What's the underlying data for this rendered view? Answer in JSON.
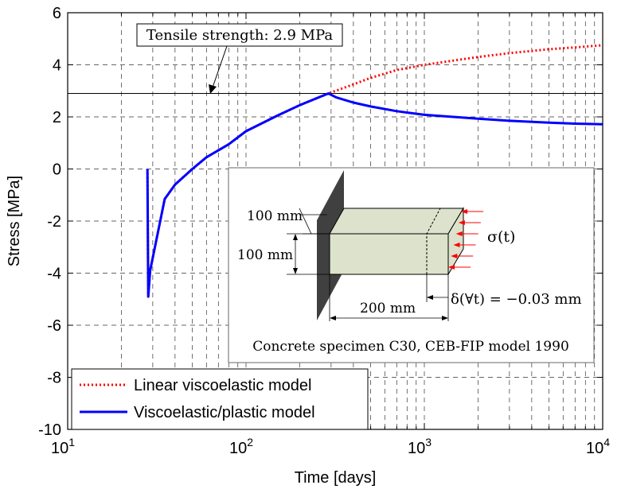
{
  "chart_data": {
    "type": "line",
    "xlabel": "Time [days]",
    "ylabel": "Stress [MPa]",
    "xscale": "log",
    "xlim": [
      10,
      10000
    ],
    "ylim": [
      -10,
      6
    ],
    "x_ticks": [
      {
        "base": "10",
        "exp": "1"
      },
      {
        "base": "10",
        "exp": "2"
      },
      {
        "base": "10",
        "exp": "3"
      },
      {
        "base": "10",
        "exp": "4"
      }
    ],
    "y_ticks": [
      "6",
      "4",
      "2",
      "0",
      "-2",
      "-4",
      "-6",
      "-8",
      "-10"
    ],
    "grid": true,
    "legend_position": "bottom-left",
    "reference_line": {
      "y": 2.9,
      "label": "Tensile strength: 2.9 MPa"
    },
    "series": [
      {
        "name": "Linear viscoelastic model",
        "color": "#ff0000",
        "style": "dotted",
        "x": [
          28,
          28.3,
          29,
          35,
          40,
          50,
          60,
          80,
          100,
          150,
          200,
          250,
          290,
          400,
          500,
          700,
          1000,
          2000,
          3000,
          5000,
          7000,
          10000
        ],
        "y": [
          0,
          -4.9,
          -3.9,
          -1.15,
          -0.6,
          0.0,
          0.45,
          0.95,
          1.45,
          2.05,
          2.45,
          2.72,
          2.9,
          3.25,
          3.5,
          3.8,
          4.0,
          4.3,
          4.45,
          4.6,
          4.67,
          4.75
        ]
      },
      {
        "name": "Viscoelastic/plastic model",
        "color": "#0000ff",
        "style": "solid",
        "x": [
          28,
          28.3,
          29,
          35,
          40,
          50,
          60,
          80,
          100,
          150,
          200,
          250,
          290,
          320,
          400,
          500,
          700,
          1000,
          2000,
          3000,
          5000,
          7000,
          10000
        ],
        "y": [
          0,
          -4.9,
          -3.9,
          -1.15,
          -0.6,
          0.0,
          0.45,
          0.95,
          1.45,
          2.05,
          2.45,
          2.72,
          2.9,
          2.75,
          2.55,
          2.4,
          2.22,
          2.08,
          1.93,
          1.85,
          1.78,
          1.74,
          1.72
        ]
      }
    ],
    "inset": {
      "dim_height": "100 mm",
      "dim_width": "100 mm",
      "dim_length": "200 mm",
      "load_symbol": "σ(t)",
      "displacement": "δ(∀t) = −0.03 mm",
      "caption": "Concrete specimen C30, CEB-FIP model 1990",
      "colors": {
        "wall": "#404040",
        "specimen": "#dde2cc",
        "arrows": "#ff0000"
      }
    }
  }
}
